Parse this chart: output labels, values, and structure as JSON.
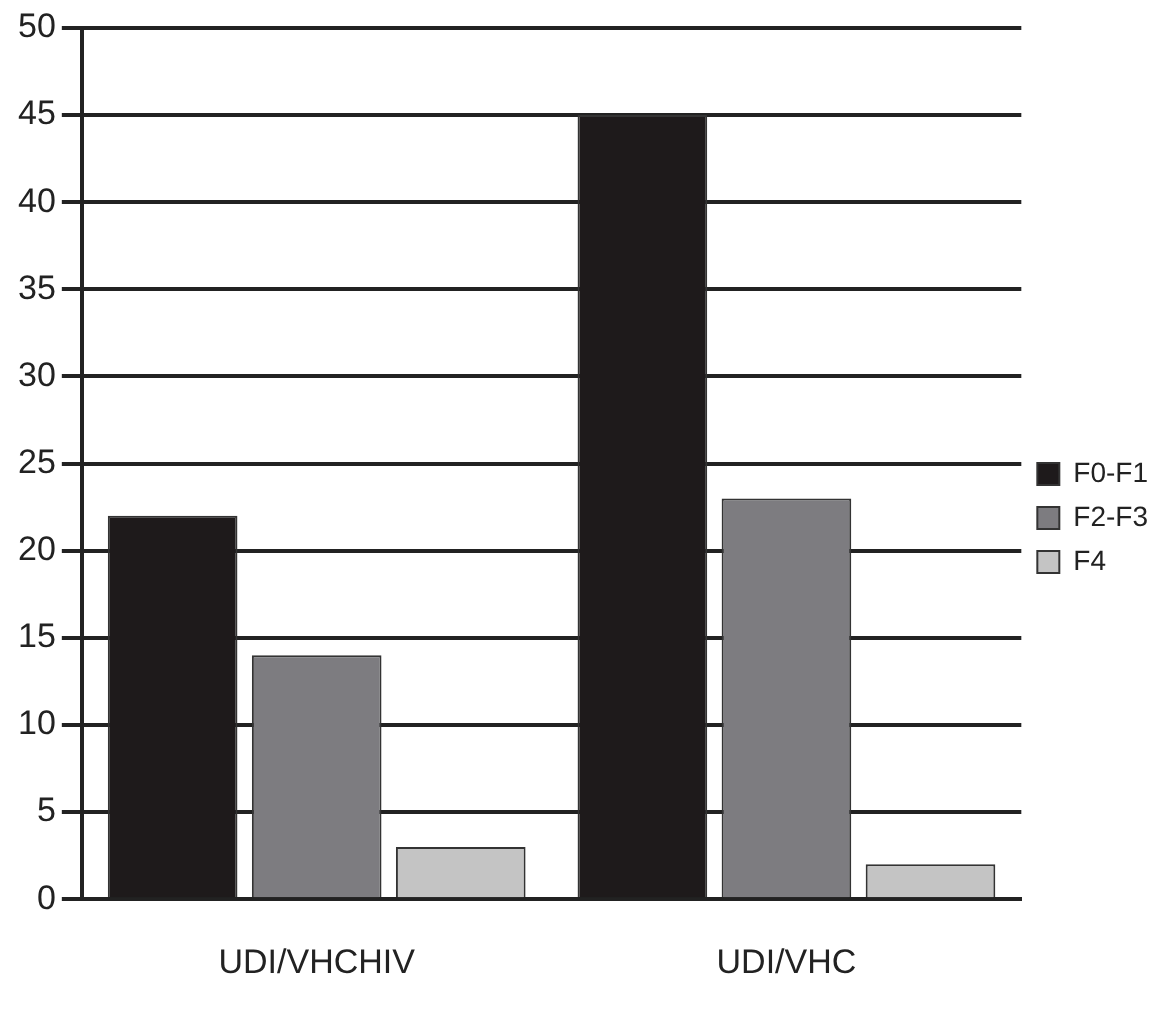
{
  "chart_data": {
    "type": "bar",
    "categories": [
      "UDI/VHCHIV",
      "UDI/VHC"
    ],
    "series": [
      {
        "name": "F0-F1",
        "color": "#1e1a1b",
        "values": [
          22,
          45
        ]
      },
      {
        "name": "F2-F3",
        "color": "#7d7c80",
        "values": [
          14,
          23
        ]
      },
      {
        "name": "F4",
        "color": "#c4c4c4",
        "values": [
          3,
          2
        ]
      }
    ],
    "ylim": [
      0,
      50
    ],
    "yticks": [
      0,
      5,
      10,
      15,
      20,
      25,
      30,
      35,
      40,
      45,
      50
    ],
    "grid": "y",
    "legend": "right"
  }
}
